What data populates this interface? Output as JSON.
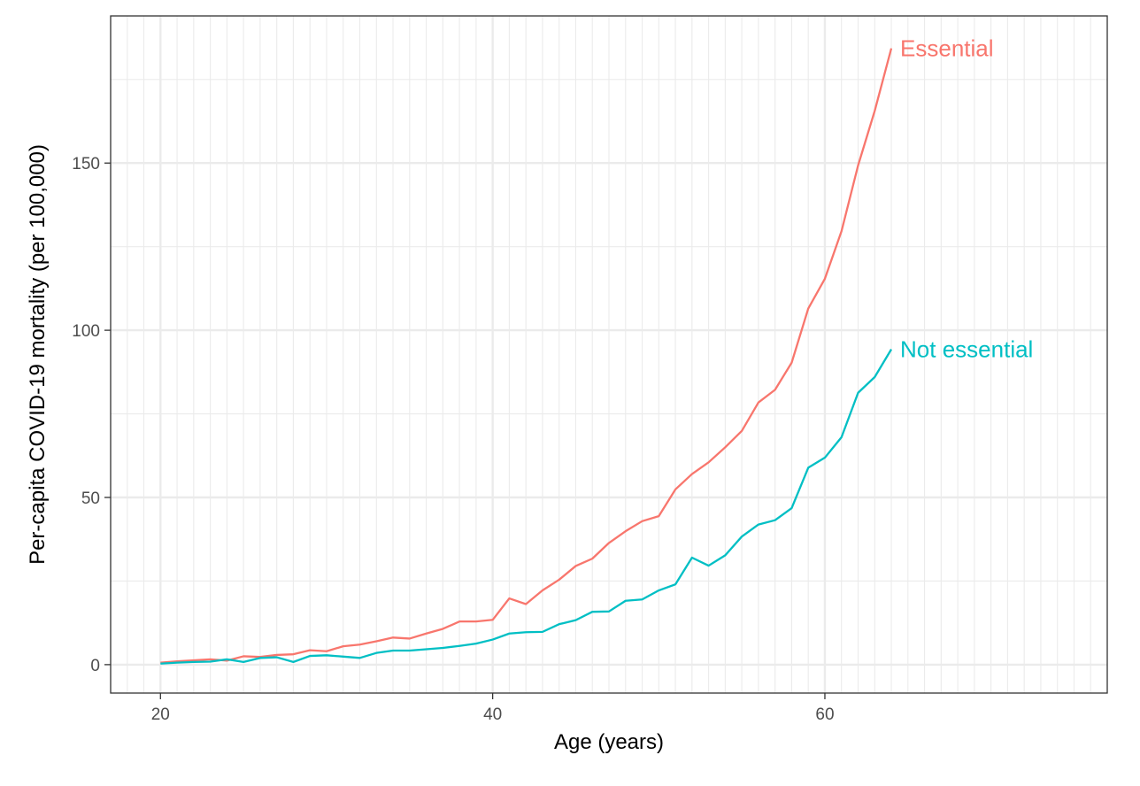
{
  "chart_data": {
    "type": "line",
    "title": "",
    "xlabel": "Age (years)",
    "ylabel": "Per-capita COVID-19 mortality (per 100,000)",
    "xlim": [
      17,
      77
    ],
    "ylim": [
      -8.5,
      194
    ],
    "x_ticks": [
      20,
      40,
      60
    ],
    "y_ticks": [
      0,
      50,
      100,
      150
    ],
    "x_tick_labels": [
      "20",
      "40",
      "60"
    ],
    "y_tick_labels": [
      "0",
      "50",
      "100",
      "150"
    ],
    "x_minor_step": 1,
    "y_minor_step": 25,
    "grid": true,
    "legend": "direct labels at line ends",
    "series": [
      {
        "name": "Essential",
        "color": "#F8766D",
        "x": [
          20,
          21,
          22,
          23,
          24,
          25,
          26,
          27,
          28,
          29,
          30,
          31,
          32,
          33,
          34,
          35,
          36,
          37,
          38,
          39,
          40,
          41,
          42,
          43,
          44,
          45,
          46,
          47,
          48,
          49,
          50,
          51,
          52,
          53,
          54,
          55,
          56,
          57,
          58,
          59,
          60,
          61,
          62,
          63,
          64
        ],
        "values": [
          0.6,
          1.0,
          1.3,
          1.6,
          1.2,
          2.5,
          2.3,
          2.9,
          3.1,
          4.3,
          4.0,
          5.5,
          6.0,
          7.0,
          8.1,
          7.8,
          9.3,
          10.7,
          12.9,
          12.9,
          13.4,
          19.8,
          18.1,
          22.2,
          25.4,
          29.5,
          31.7,
          36.4,
          39.9,
          42.9,
          44.4,
          52.4,
          57.0,
          60.5,
          65.0,
          69.9,
          78.4,
          82.2,
          90.3,
          106.5,
          115.4,
          129.6,
          149.3,
          165.6,
          184.3
        ]
      },
      {
        "name": "Not essential",
        "color": "#00BFC4",
        "x": [
          20,
          21,
          22,
          23,
          24,
          25,
          26,
          27,
          28,
          29,
          30,
          31,
          32,
          33,
          34,
          35,
          36,
          37,
          38,
          39,
          40,
          41,
          42,
          43,
          44,
          45,
          46,
          47,
          48,
          49,
          50,
          51,
          52,
          53,
          54,
          55,
          56,
          57,
          58,
          59,
          60,
          61,
          62,
          63,
          64
        ],
        "values": [
          0.3,
          0.6,
          0.8,
          0.9,
          1.6,
          0.8,
          2.0,
          2.2,
          0.8,
          2.6,
          2.8,
          2.4,
          2.0,
          3.5,
          4.2,
          4.2,
          4.6,
          5.0,
          5.6,
          6.3,
          7.5,
          9.3,
          9.7,
          9.8,
          12.1,
          13.3,
          15.8,
          15.9,
          19.1,
          19.5,
          22.2,
          24.0,
          32.0,
          29.6,
          32.7,
          38.3,
          41.9,
          43.2,
          46.8,
          58.9,
          61.9,
          68.0,
          81.3,
          86.0,
          94.3
        ]
      }
    ]
  }
}
